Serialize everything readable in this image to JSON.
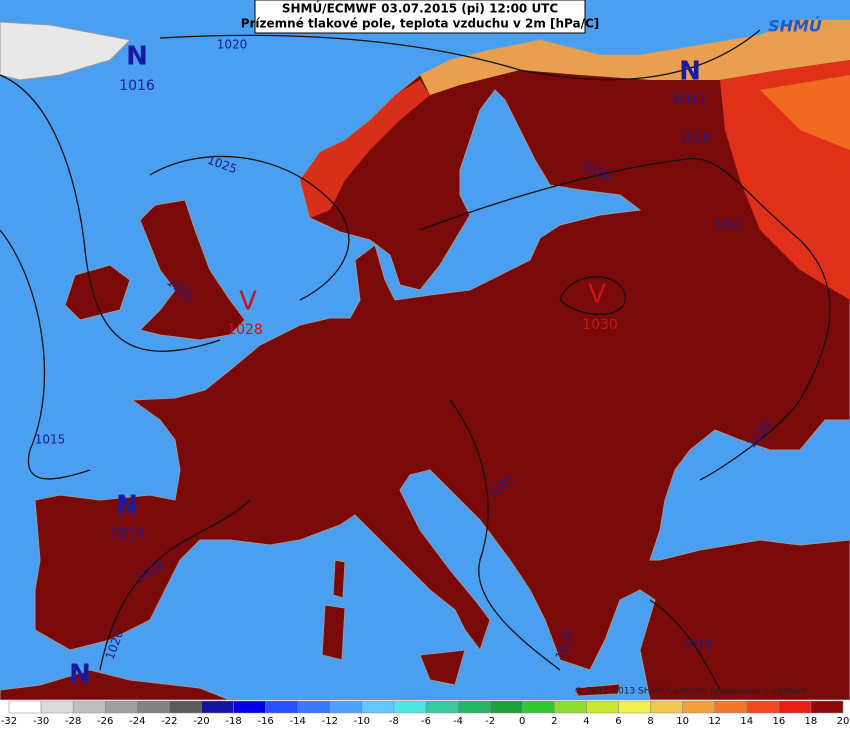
{
  "header": {
    "title": "SHMÚ/ECMWF 03.07.2015 (pi) 12:00 UTC",
    "subtitle": "Prízemné tlakové pole, teplota vzduchu v 2m [hPa/C]",
    "logo": "SHMÚ"
  },
  "pressure_centers": [
    {
      "symbol": "N",
      "value": "1016"
    },
    {
      "symbol": "N",
      "value": "1011"
    },
    {
      "symbol": "N",
      "value": "1014"
    },
    {
      "symbol": "N"
    },
    {
      "symbol": "V",
      "value": "1028"
    },
    {
      "symbol": "V",
      "value": "1030"
    }
  ],
  "isobar_labels": [
    "1020",
    "1025",
    "1025",
    "1015",
    "1020",
    "1020",
    "1025",
    "1020",
    "1015",
    "1025",
    "1020",
    "1015",
    "1020"
  ],
  "legend": {
    "labels": [
      -32,
      -30,
      -28,
      -26,
      -24,
      -22,
      -20,
      -18,
      -16,
      -14,
      -12,
      -10,
      -8,
      -6,
      -4,
      -2,
      0,
      2,
      4,
      6,
      8,
      10,
      12,
      14,
      16,
      18,
      20
    ],
    "colors": [
      "#ffffff",
      "#dcdcdc",
      "#bebebe",
      "#a0a0a0",
      "#828282",
      "#5a5a5a",
      "#1414a0",
      "#0000e6",
      "#2850ff",
      "#3c78ff",
      "#50a0ff",
      "#64c8ff",
      "#50e6e6",
      "#3cc8a0",
      "#28b464",
      "#1ea03c",
      "#32c832",
      "#8cdc32",
      "#c8e632",
      "#f0f050",
      "#f0c850",
      "#f0a03c",
      "#f07828",
      "#f04a1e",
      "#e61e14",
      "#8c0a0a"
    ]
  },
  "copyright": "© 2012-2013 SHMÚ/Centrum predpovedí a výstrah"
}
